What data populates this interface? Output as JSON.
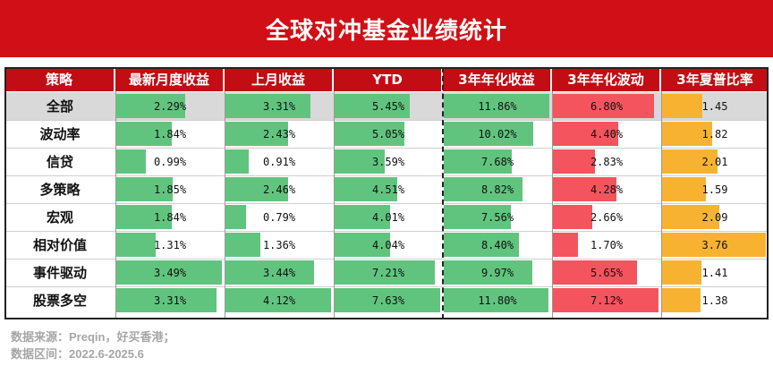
{
  "title": "全球对冲基金业绩统计",
  "headers": [
    "策略",
    "最新月度收益",
    "上月收益",
    "YTD",
    "3年年化收益",
    "3年年化波动",
    "3年夏普比率"
  ],
  "colors": {
    "banner": "#d10f16",
    "header": "#c20d14",
    "green": "#61c47e",
    "red": "#f4545d",
    "orange": "#f8b232",
    "highlight": "#d9d9d9"
  },
  "chart_data": {
    "type": "table",
    "columns": [
      "最新月度收益",
      "上月收益",
      "YTD",
      "3年年化收益",
      "3年年化波动",
      "3年夏普比率"
    ],
    "rows": [
      {
        "name": "全部",
        "labels": [
          "2.29%",
          "3.31%",
          "5.45%",
          "11.86%",
          "6.80%",
          "1.45"
        ],
        "values": [
          2.29,
          3.31,
          5.45,
          11.86,
          6.8,
          1.45
        ]
      },
      {
        "name": "波动率",
        "labels": [
          "1.84%",
          "2.43%",
          "5.05%",
          "10.02%",
          "4.40%",
          "1.82"
        ],
        "values": [
          1.84,
          2.43,
          5.05,
          10.02,
          4.4,
          1.82
        ]
      },
      {
        "name": "信贷",
        "labels": [
          "0.99%",
          "0.91%",
          "3.59%",
          "7.68%",
          "2.83%",
          "2.01"
        ],
        "values": [
          0.99,
          0.91,
          3.59,
          7.68,
          2.83,
          2.01
        ]
      },
      {
        "name": "多策略",
        "labels": [
          "1.85%",
          "2.46%",
          "4.51%",
          "8.82%",
          "4.28%",
          "1.59"
        ],
        "values": [
          1.85,
          2.46,
          4.51,
          8.82,
          4.28,
          1.59
        ]
      },
      {
        "name": "宏观",
        "labels": [
          "1.84%",
          "0.79%",
          "4.01%",
          "7.56%",
          "2.66%",
          "2.09"
        ],
        "values": [
          1.84,
          0.79,
          4.01,
          7.56,
          2.66,
          2.09
        ]
      },
      {
        "name": "相对价值",
        "labels": [
          "1.31%",
          "1.36%",
          "4.04%",
          "8.40%",
          "1.70%",
          "3.76"
        ],
        "values": [
          1.31,
          1.36,
          4.04,
          8.4,
          1.7,
          3.76
        ]
      },
      {
        "name": "事件驱动",
        "labels": [
          "3.49%",
          "3.44%",
          "7.21%",
          "9.97%",
          "5.65%",
          "1.41"
        ],
        "values": [
          3.49,
          3.44,
          7.21,
          9.97,
          5.65,
          1.41
        ]
      },
      {
        "name": "股票多空",
        "labels": [
          "3.31%",
          "4.12%",
          "7.63%",
          "11.80%",
          "7.12%",
          "1.38"
        ],
        "values": [
          3.31,
          4.12,
          7.63,
          11.8,
          7.12,
          1.38
        ]
      }
    ]
  },
  "footer": {
    "source": "数据来源：Preqin，好买香港；",
    "period": "数据区间：2022.6-2025.6"
  }
}
